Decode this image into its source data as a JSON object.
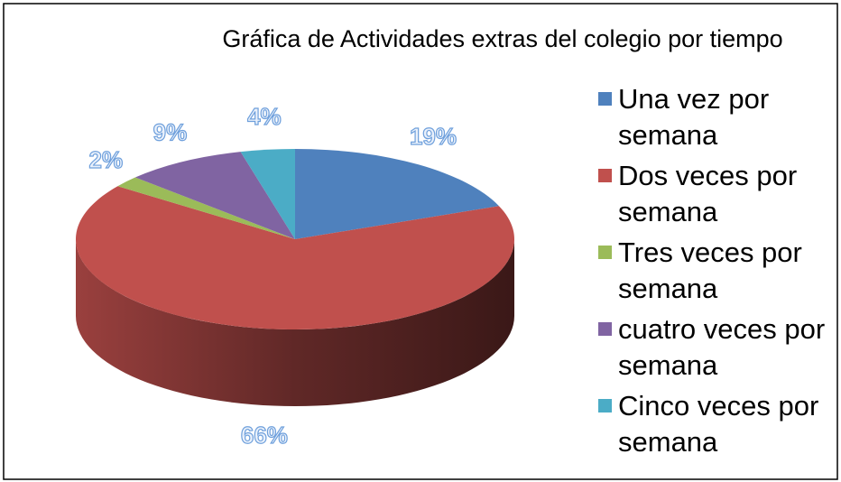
{
  "chart_data": {
    "type": "pie",
    "title": "Gráfica de Actividades extras del colegio por tiempo",
    "categories": [
      "Una vez por semana",
      "Dos veces por semana",
      "Tres veces por semana",
      "cuatro veces por semana",
      "Cinco veces por semana"
    ],
    "values": [
      19,
      66,
      2,
      9,
      4
    ],
    "value_labels": [
      "19%",
      "66%",
      "2%",
      "9%",
      "4%"
    ],
    "colors": [
      "#4f81bd",
      "#c0504d",
      "#9bbb59",
      "#8064a2",
      "#4bacc6"
    ],
    "legend": "right"
  }
}
